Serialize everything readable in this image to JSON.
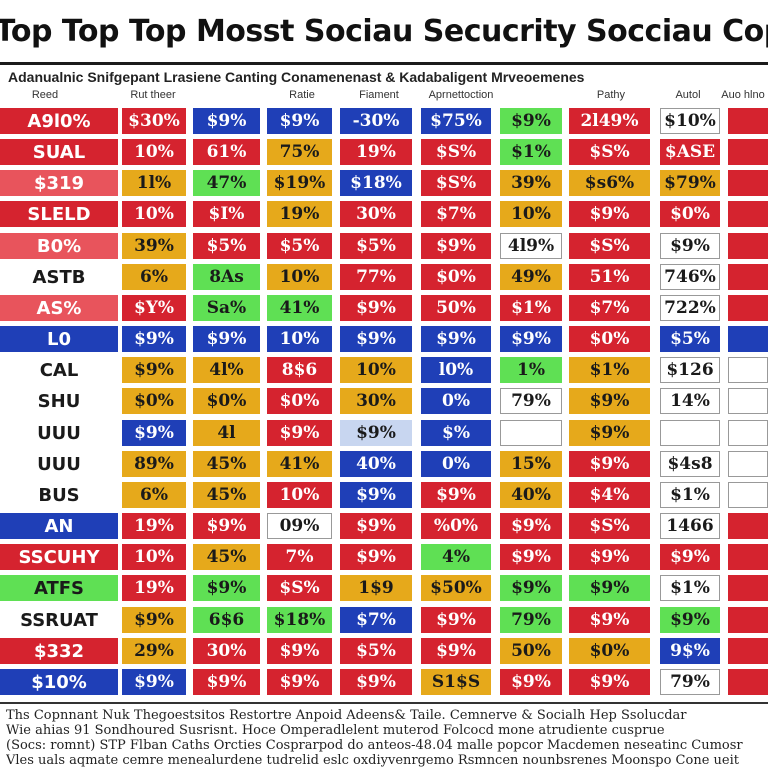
{
  "title": "A Top Top Top Mosst Sociau Secucrity Socciau Copp",
  "subtitle": "Adanualnic Snifgepant Lrasiene Canting Conamenenast & Kadabaligent Mrveoemenes",
  "column_headers": [
    "Reed",
    "Rut theer",
    "",
    "Ratie",
    "Fiament",
    "Aprnettoction",
    "",
    "Pathy",
    "Autol",
    "Auo hlno"
  ],
  "palette": {
    "R": "#d5232f",
    "r": "#e8545c",
    "Y": "#e6a91b",
    "G": "#5fe054",
    "B": "#1f3fb7",
    "W": "#ffffff",
    "L": "#c8d6f0"
  },
  "rows": [
    {
      "label": "A9l0%",
      "cells": [
        {
          "t": "$30%",
          "c": "R"
        },
        {
          "t": "$9%",
          "c": "B"
        },
        {
          "t": "$9%",
          "c": "B"
        },
        {
          "t": "-30%",
          "c": "B"
        },
        {
          "t": "$75%",
          "c": "B"
        },
        {
          "t": "$9%",
          "c": "G"
        },
        {
          "t": "2l49%",
          "c": "R"
        },
        {
          "t": "$10%",
          "c": "W"
        },
        {
          "t": "",
          "c": "R"
        }
      ],
      "lc": "R"
    },
    {
      "label": "SUAL",
      "cells": [
        {
          "t": "10%",
          "c": "R"
        },
        {
          "t": "61%",
          "c": "R"
        },
        {
          "t": "75%",
          "c": "Y"
        },
        {
          "t": "19%",
          "c": "R"
        },
        {
          "t": "$S%",
          "c": "R"
        },
        {
          "t": "$1%",
          "c": "G"
        },
        {
          "t": "$S%",
          "c": "R"
        },
        {
          "t": "$ASE",
          "c": "R"
        },
        {
          "t": "",
          "c": "R"
        }
      ],
      "lc": "R"
    },
    {
      "label": "$319",
      "cells": [
        {
          "t": "1l%",
          "c": "Y"
        },
        {
          "t": "47%",
          "c": "G"
        },
        {
          "t": "$19%",
          "c": "Y"
        },
        {
          "t": "$18%",
          "c": "B"
        },
        {
          "t": "$S%",
          "c": "R"
        },
        {
          "t": "39%",
          "c": "Y"
        },
        {
          "t": "$s6%",
          "c": "Y"
        },
        {
          "t": "$79%",
          "c": "Y"
        },
        {
          "t": "",
          "c": "R"
        }
      ],
      "lc": "r"
    },
    {
      "label": "SLELD",
      "cells": [
        {
          "t": "10%",
          "c": "R"
        },
        {
          "t": "$I%",
          "c": "R"
        },
        {
          "t": "19%",
          "c": "Y"
        },
        {
          "t": "30%",
          "c": "R"
        },
        {
          "t": "$7%",
          "c": "R"
        },
        {
          "t": "10%",
          "c": "Y"
        },
        {
          "t": "$9%",
          "c": "R"
        },
        {
          "t": "$0%",
          "c": "R"
        },
        {
          "t": "",
          "c": "R"
        }
      ],
      "lc": "R"
    },
    {
      "label": "B0%",
      "cells": [
        {
          "t": "39%",
          "c": "Y"
        },
        {
          "t": "$5%",
          "c": "R"
        },
        {
          "t": "$5%",
          "c": "R"
        },
        {
          "t": "$5%",
          "c": "R"
        },
        {
          "t": "$9%",
          "c": "R"
        },
        {
          "t": "4l9%",
          "c": "W"
        },
        {
          "t": "$S%",
          "c": "R"
        },
        {
          "t": "$9%",
          "c": "W"
        },
        {
          "t": "",
          "c": "R"
        }
      ],
      "lc": "r"
    },
    {
      "label": "ASTB",
      "cells": [
        {
          "t": "6%",
          "c": "Y"
        },
        {
          "t": "8As",
          "c": "G"
        },
        {
          "t": "10%",
          "c": "Y"
        },
        {
          "t": "77%",
          "c": "R"
        },
        {
          "t": "$0%",
          "c": "R"
        },
        {
          "t": "49%",
          "c": "Y"
        },
        {
          "t": "51%",
          "c": "R"
        },
        {
          "t": "746%",
          "c": "W"
        },
        {
          "t": "",
          "c": "R"
        }
      ],
      "lc": "W"
    },
    {
      "label": "AS%",
      "cells": [
        {
          "t": "$Y%",
          "c": "R"
        },
        {
          "t": "Sa%",
          "c": "G"
        },
        {
          "t": "41%",
          "c": "G"
        },
        {
          "t": "$9%",
          "c": "R"
        },
        {
          "t": "50%",
          "c": "R"
        },
        {
          "t": "$1%",
          "c": "R"
        },
        {
          "t": "$7%",
          "c": "R"
        },
        {
          "t": "722%",
          "c": "W"
        },
        {
          "t": "",
          "c": "R"
        }
      ],
      "lc": "r"
    },
    {
      "label": "L0",
      "cells": [
        {
          "t": "$9%",
          "c": "B"
        },
        {
          "t": "$9%",
          "c": "B"
        },
        {
          "t": "10%",
          "c": "B"
        },
        {
          "t": "$9%",
          "c": "B"
        },
        {
          "t": "$9%",
          "c": "B"
        },
        {
          "t": "$9%",
          "c": "B"
        },
        {
          "t": "$0%",
          "c": "R"
        },
        {
          "t": "$5%",
          "c": "B"
        },
        {
          "t": "",
          "c": "B"
        }
      ],
      "lc": "B"
    },
    {
      "label": "CAL",
      "cells": [
        {
          "t": "$9%",
          "c": "Y"
        },
        {
          "t": "4l%",
          "c": "Y"
        },
        {
          "t": "8$6",
          "c": "R"
        },
        {
          "t": "10%",
          "c": "Y"
        },
        {
          "t": "l0%",
          "c": "B"
        },
        {
          "t": "1%",
          "c": "G"
        },
        {
          "t": "$1%",
          "c": "Y"
        },
        {
          "t": "$126",
          "c": "W"
        },
        {
          "t": "",
          "c": "W"
        }
      ],
      "lc": "W"
    },
    {
      "label": "SHU",
      "cells": [
        {
          "t": "$0%",
          "c": "Y"
        },
        {
          "t": "$0%",
          "c": "Y"
        },
        {
          "t": "$0%",
          "c": "R"
        },
        {
          "t": "30%",
          "c": "Y"
        },
        {
          "t": "0%",
          "c": "B"
        },
        {
          "t": "79%",
          "c": "W"
        },
        {
          "t": "$9%",
          "c": "Y"
        },
        {
          "t": "14%",
          "c": "W"
        },
        {
          "t": "",
          "c": "W"
        }
      ],
      "lc": "W"
    },
    {
      "label": "UUU",
      "cells": [
        {
          "t": "$9%",
          "c": "B"
        },
        {
          "t": "4l",
          "c": "Y"
        },
        {
          "t": "$9%",
          "c": "R"
        },
        {
          "t": "$9%",
          "c": "L"
        },
        {
          "t": "$%",
          "c": "B"
        },
        {
          "t": "",
          "c": "W"
        },
        {
          "t": "$9%",
          "c": "Y"
        },
        {
          "t": "",
          "c": "W"
        },
        {
          "t": "",
          "c": "W"
        }
      ],
      "lc": "W"
    },
    {
      "label": "UUU",
      "cells": [
        {
          "t": "89%",
          "c": "Y"
        },
        {
          "t": "45%",
          "c": "Y"
        },
        {
          "t": "41%",
          "c": "Y"
        },
        {
          "t": "40%",
          "c": "B"
        },
        {
          "t": "0%",
          "c": "B"
        },
        {
          "t": "15%",
          "c": "Y"
        },
        {
          "t": "$9%",
          "c": "R"
        },
        {
          "t": "$4s8",
          "c": "W"
        },
        {
          "t": "",
          "c": "W"
        }
      ],
      "lc": "W"
    },
    {
      "label": "BUS",
      "cells": [
        {
          "t": "6%",
          "c": "Y"
        },
        {
          "t": "45%",
          "c": "Y"
        },
        {
          "t": "10%",
          "c": "R"
        },
        {
          "t": "$9%",
          "c": "B"
        },
        {
          "t": "$9%",
          "c": "R"
        },
        {
          "t": "40%",
          "c": "Y"
        },
        {
          "t": "$4%",
          "c": "R"
        },
        {
          "t": "$1%",
          "c": "W"
        },
        {
          "t": "",
          "c": "W"
        }
      ],
      "lc": "W"
    },
    {
      "label": "AN",
      "cells": [
        {
          "t": "19%",
          "c": "R"
        },
        {
          "t": "$9%",
          "c": "R"
        },
        {
          "t": "09%",
          "c": "W"
        },
        {
          "t": "$9%",
          "c": "R"
        },
        {
          "t": "%0%",
          "c": "R"
        },
        {
          "t": "$9%",
          "c": "R"
        },
        {
          "t": "$S%",
          "c": "R"
        },
        {
          "t": "1466",
          "c": "W"
        },
        {
          "t": "",
          "c": "R"
        }
      ],
      "lc": "B"
    },
    {
      "label": "SSCUHY",
      "cells": [
        {
          "t": "10%",
          "c": "R"
        },
        {
          "t": "45%",
          "c": "Y"
        },
        {
          "t": "7%",
          "c": "R"
        },
        {
          "t": "$9%",
          "c": "R"
        },
        {
          "t": "4%",
          "c": "G"
        },
        {
          "t": "$9%",
          "c": "R"
        },
        {
          "t": "$9%",
          "c": "R"
        },
        {
          "t": "$9%",
          "c": "R"
        },
        {
          "t": "",
          "c": "R"
        }
      ],
      "lc": "R"
    },
    {
      "label": "ATFS",
      "cells": [
        {
          "t": "19%",
          "c": "R"
        },
        {
          "t": "$9%",
          "c": "G"
        },
        {
          "t": "$S%",
          "c": "R"
        },
        {
          "t": "1$9",
          "c": "Y"
        },
        {
          "t": "$50%",
          "c": "Y"
        },
        {
          "t": "$9%",
          "c": "G"
        },
        {
          "t": "$9%",
          "c": "G"
        },
        {
          "t": "$1%",
          "c": "W"
        },
        {
          "t": "",
          "c": "R"
        }
      ],
      "lc": "G"
    },
    {
      "label": "SSRUAT",
      "cells": [
        {
          "t": "$9%",
          "c": "Y"
        },
        {
          "t": "6$6",
          "c": "G"
        },
        {
          "t": "$18%",
          "c": "G"
        },
        {
          "t": "$7%",
          "c": "B"
        },
        {
          "t": "$9%",
          "c": "R"
        },
        {
          "t": "79%",
          "c": "G"
        },
        {
          "t": "$9%",
          "c": "R"
        },
        {
          "t": "$9%",
          "c": "G"
        },
        {
          "t": "",
          "c": "R"
        }
      ],
      "lc": "W"
    },
    {
      "label": "$332",
      "cells": [
        {
          "t": "29%",
          "c": "Y"
        },
        {
          "t": "30%",
          "c": "R"
        },
        {
          "t": "$9%",
          "c": "R"
        },
        {
          "t": "$5%",
          "c": "R"
        },
        {
          "t": "$9%",
          "c": "R"
        },
        {
          "t": "50%",
          "c": "Y"
        },
        {
          "t": "$0%",
          "c": "Y"
        },
        {
          "t": "9$%",
          "c": "B"
        },
        {
          "t": "",
          "c": "R"
        }
      ],
      "lc": "R"
    },
    {
      "label": "$10%",
      "cells": [
        {
          "t": "$9%",
          "c": "B"
        },
        {
          "t": "$9%",
          "c": "R"
        },
        {
          "t": "$9%",
          "c": "R"
        },
        {
          "t": "$9%",
          "c": "R"
        },
        {
          "t": "S1$S",
          "c": "Y"
        },
        {
          "t": "$9%",
          "c": "R"
        },
        {
          "t": "$9%",
          "c": "R"
        },
        {
          "t": "79%",
          "c": "W"
        },
        {
          "t": "",
          "c": "R"
        }
      ],
      "lc": "B"
    }
  ],
  "footnotes": [
    "Ths Copnnant Nuk Thegoestsitos Restortre Anpoid Adeens& Taile. Cemnerve & Socialh Hep Ssolucdar",
    "Wie ahias 91 Sondhoured Susrisnt. Hoce Omperadlelent muterod Folcocd mone atrudiente cusprue",
    "(Socs: romnt) STP Flban Caths Orcties Cosprarpod do anteos-48.04 malle popcor Macdemen neseatinc Cumosr",
    "Vles uals aqmate cemre menealurdene tudrelid eslc oxdiyvenrgemo Rsmncen nounbsrenes Moonspo Cone ueit"
  ]
}
